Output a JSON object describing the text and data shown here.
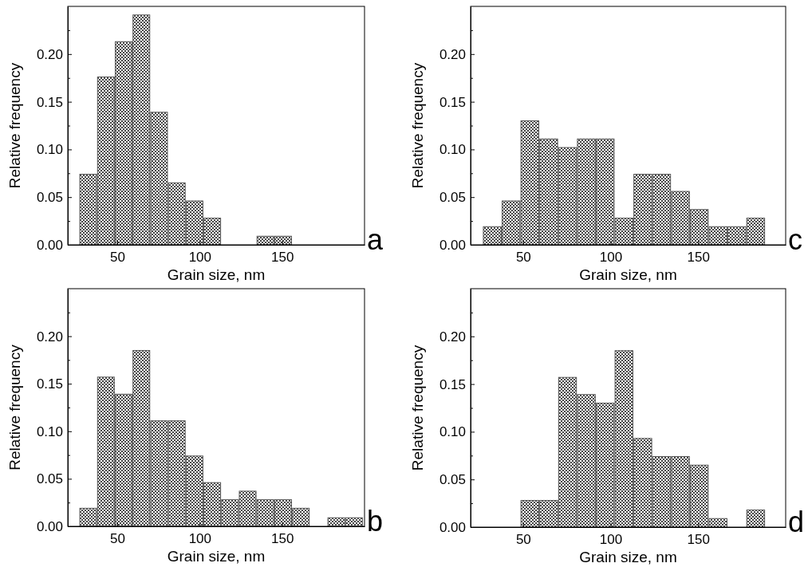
{
  "chart_data": [
    {
      "type": "histogram",
      "xlabel": "Grain size, nm",
      "ylabel": "Relative frequency",
      "annotations": [
        "a"
      ],
      "bins": [
        27,
        37.75,
        48.5,
        59.25,
        70,
        80.75,
        91.5,
        102.25,
        113,
        123.75,
        134.5,
        145.25,
        156
      ],
      "values": [
        0.074,
        0.176,
        0.213,
        0.241,
        0.139,
        0.065,
        0.046,
        0.028,
        0,
        0,
        0.009,
        0.009
      ],
      "xlim": [
        20,
        200
      ],
      "xticks": [
        50,
        100,
        150
      ],
      "ylim": [
        0,
        0.25
      ],
      "yticks": [
        {
          "value": 0,
          "label": "0.00"
        },
        {
          "value": 0.025,
          "label": null
        },
        {
          "value": 0.05,
          "label": "0.05"
        },
        {
          "value": 0.075,
          "label": null
        },
        {
          "value": 0.1,
          "label": "0.10"
        },
        {
          "value": 0.125,
          "label": null
        },
        {
          "value": 0.15,
          "label": "0.15"
        },
        {
          "value": 0.175,
          "label": null
        },
        {
          "value": 0.2,
          "label": "0.20"
        },
        {
          "value": 0.225,
          "label": null
        }
      ],
      "grid": false
    },
    {
      "type": "histogram",
      "xlabel": "Grain size, nm",
      "ylabel": "Relative frequency",
      "annotations": [
        "c"
      ],
      "bins": [
        27,
        37.75,
        48.5,
        59.25,
        70,
        80.75,
        91.5,
        102.25,
        113,
        123.75,
        134.5,
        145.25,
        156,
        166.75,
        177.5,
        188.25
      ],
      "values": [
        0.019,
        0.046,
        0.13,
        0.111,
        0.102,
        0.111,
        0.111,
        0.028,
        0.074,
        0.074,
        0.056,
        0.037,
        0.019,
        0.019,
        0.028
      ],
      "xlim": [
        20,
        200
      ],
      "xticks": [
        50,
        100,
        150
      ],
      "ylim": [
        0,
        0.25
      ],
      "yticks": [
        {
          "value": 0,
          "label": "0.00"
        },
        {
          "value": 0.025,
          "label": null
        },
        {
          "value": 0.05,
          "label": "0.05"
        },
        {
          "value": 0.075,
          "label": null
        },
        {
          "value": 0.1,
          "label": "0.10"
        },
        {
          "value": 0.125,
          "label": null
        },
        {
          "value": 0.15,
          "label": "0.15"
        },
        {
          "value": 0.175,
          "label": null
        },
        {
          "value": 0.2,
          "label": "0.20"
        },
        {
          "value": 0.225,
          "label": null
        }
      ],
      "grid": false
    },
    {
      "type": "histogram",
      "xlabel": "Grain size, nm",
      "ylabel": "Relative frequency",
      "annotations": [
        "b"
      ],
      "bins": [
        27,
        37.75,
        48.5,
        59.25,
        70,
        80.75,
        91.5,
        102.25,
        113,
        123.75,
        134.5,
        145.25,
        156,
        166.75,
        177.5,
        188.25,
        199
      ],
      "values": [
        0.019,
        0.157,
        0.139,
        0.185,
        0.111,
        0.111,
        0.074,
        0.046,
        0.028,
        0.037,
        0.028,
        0.028,
        0.019,
        0,
        0.009,
        0.009
      ],
      "xlim": [
        20,
        200
      ],
      "xticks": [
        50,
        100,
        150
      ],
      "ylim": [
        0,
        0.25
      ],
      "yticks": [
        {
          "value": 0,
          "label": "0.00"
        },
        {
          "value": 0.025,
          "label": null
        },
        {
          "value": 0.05,
          "label": "0.05"
        },
        {
          "value": 0.075,
          "label": null
        },
        {
          "value": 0.1,
          "label": "0.10"
        },
        {
          "value": 0.125,
          "label": null
        },
        {
          "value": 0.15,
          "label": "0.15"
        },
        {
          "value": 0.175,
          "label": null
        },
        {
          "value": 0.2,
          "label": "0.20"
        },
        {
          "value": 0.225,
          "label": null
        }
      ],
      "grid": false
    },
    {
      "type": "histogram",
      "xlabel": "Grain size, nm",
      "ylabel": "Relative frequency",
      "annotations": [
        "d"
      ],
      "bins": [
        48.5,
        59.25,
        70,
        80.75,
        91.5,
        102.25,
        113,
        123.75,
        134.5,
        145.25,
        156,
        166.75,
        177.5,
        188.25
      ],
      "values": [
        0.028,
        0.028,
        0.157,
        0.139,
        0.13,
        0.185,
        0.093,
        0.074,
        0.074,
        0.065,
        0.009,
        0,
        0.018
      ],
      "xlim": [
        20,
        200
      ],
      "xticks": [
        50,
        100,
        150
      ],
      "ylim": [
        0,
        0.25
      ],
      "yticks": [
        {
          "value": 0,
          "label": "0.00"
        },
        {
          "value": 0.025,
          "label": null
        },
        {
          "value": 0.05,
          "label": "0.05"
        },
        {
          "value": 0.075,
          "label": null
        },
        {
          "value": 0.1,
          "label": "0.10"
        },
        {
          "value": 0.125,
          "label": null
        },
        {
          "value": 0.15,
          "label": "0.15"
        },
        {
          "value": 0.175,
          "label": null
        },
        {
          "value": 0.2,
          "label": "0.20"
        },
        {
          "value": 0.225,
          "label": null
        }
      ],
      "grid": false
    }
  ]
}
